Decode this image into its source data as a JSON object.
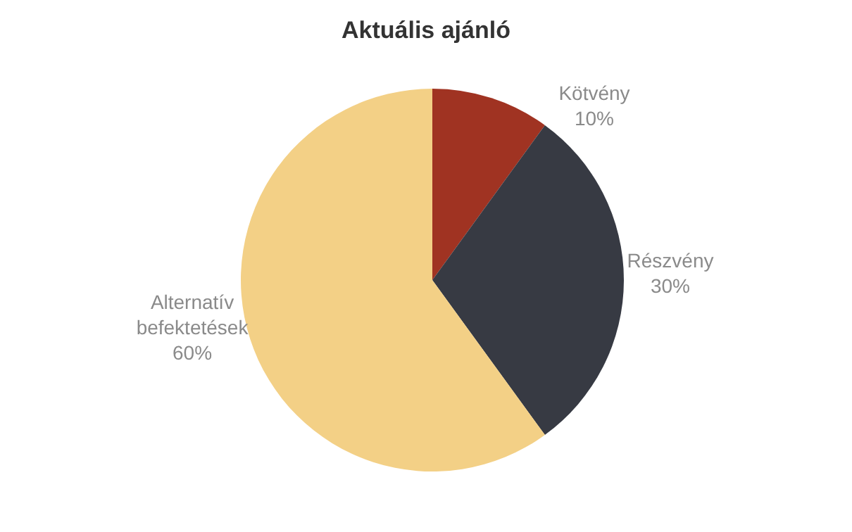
{
  "chart_data": {
    "type": "pie",
    "title": "Aktuális ajánló",
    "categories": [
      "Kötvény",
      "Részvény",
      "Alternatív befektetések"
    ],
    "values": [
      10,
      30,
      60
    ],
    "value_labels": [
      "10%",
      "30%",
      "60%"
    ],
    "colors": [
      "#a03322",
      "#373a43",
      "#f3d086"
    ],
    "legend": false
  }
}
